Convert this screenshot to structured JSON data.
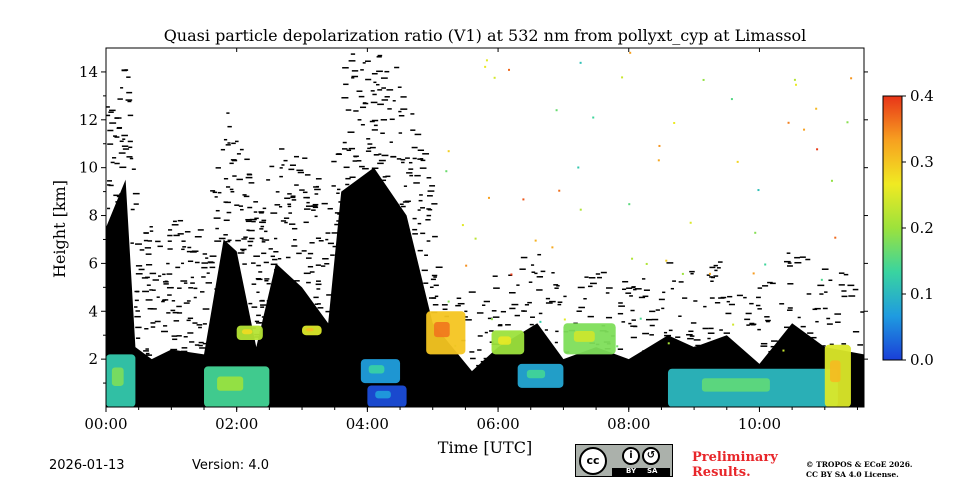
{
  "chart_data": {
    "type": "heatmap",
    "title": "Quasi particle depolarization ratio (V1) at 532 nm from pollyxt_cyp at Limassol",
    "xlabel": "Time [UTC]",
    "ylabel": "Height [km]",
    "xlim_hours": [
      0,
      11.6
    ],
    "ylim_km": [
      0,
      15
    ],
    "x_ticks": [
      {
        "value": 0,
        "label": "00:00"
      },
      {
        "value": 2,
        "label": "02:00"
      },
      {
        "value": 4,
        "label": "04:00"
      },
      {
        "value": 6,
        "label": "06:00"
      },
      {
        "value": 8,
        "label": "08:00"
      },
      {
        "value": 10,
        "label": "10:00"
      }
    ],
    "y_ticks": [
      {
        "value": 2,
        "label": "2"
      },
      {
        "value": 4,
        "label": "4"
      },
      {
        "value": 6,
        "label": "6"
      },
      {
        "value": 8,
        "label": "8"
      },
      {
        "value": 10,
        "label": "10"
      },
      {
        "value": 12,
        "label": "12"
      },
      {
        "value": 14,
        "label": "14"
      }
    ],
    "colorbar": {
      "vmin": 0.0,
      "vmax": 0.4,
      "ticks": [
        {
          "value": 0.0,
          "label": "0.0"
        },
        {
          "value": 0.1,
          "label": "0.1"
        },
        {
          "value": 0.2,
          "label": "0.2"
        },
        {
          "value": 0.3,
          "label": "0.3"
        },
        {
          "value": 0.4,
          "label": "0.4"
        }
      ],
      "colors": [
        "#1a3fd8",
        "#1f9be0",
        "#39d4a0",
        "#9ce23c",
        "#f0ea22",
        "#f7a020",
        "#e83418"
      ]
    },
    "black_masked_region": {
      "description_value": "missing/unreliable data shown black",
      "profile": [
        {
          "t": 0.0,
          "top_km": 7.5
        },
        {
          "t": 0.3,
          "top_km": 9.5
        },
        {
          "t": 0.45,
          "top_km": 2.5
        },
        {
          "t": 0.7,
          "top_km": 2.0
        },
        {
          "t": 1.0,
          "top_km": 2.4
        },
        {
          "t": 1.5,
          "top_km": 2.2
        },
        {
          "t": 1.8,
          "top_km": 7.0
        },
        {
          "t": 2.0,
          "top_km": 6.5
        },
        {
          "t": 2.3,
          "top_km": 2.5
        },
        {
          "t": 2.6,
          "top_km": 6.0
        },
        {
          "t": 3.0,
          "top_km": 5.0
        },
        {
          "t": 3.4,
          "top_km": 3.5
        },
        {
          "t": 3.6,
          "top_km": 9.0
        },
        {
          "t": 4.1,
          "top_km": 10.0
        },
        {
          "t": 4.6,
          "top_km": 8.0
        },
        {
          "t": 5.0,
          "top_km": 3.5
        },
        {
          "t": 5.6,
          "top_km": 1.5
        },
        {
          "t": 6.0,
          "top_km": 2.5
        },
        {
          "t": 6.6,
          "top_km": 3.5
        },
        {
          "t": 7.0,
          "top_km": 2.0
        },
        {
          "t": 7.5,
          "top_km": 2.5
        },
        {
          "t": 8.0,
          "top_km": 2.0
        },
        {
          "t": 8.6,
          "top_km": 3.0
        },
        {
          "t": 9.0,
          "top_km": 2.5
        },
        {
          "t": 9.5,
          "top_km": 3.0
        },
        {
          "t": 10.0,
          "top_km": 1.8
        },
        {
          "t": 10.5,
          "top_km": 3.5
        },
        {
          "t": 11.0,
          "top_km": 2.5
        },
        {
          "t": 11.6,
          "top_km": 2.2
        }
      ]
    },
    "aerosol_patches": [
      {
        "t0": 0.0,
        "t1": 0.45,
        "h0": 0.0,
        "h1": 2.2,
        "value": 0.12
      },
      {
        "t0": 1.5,
        "t1": 2.5,
        "h0": 0.0,
        "h1": 1.7,
        "value": 0.14
      },
      {
        "t0": 2.0,
        "t1": 2.4,
        "h0": 2.8,
        "h1": 3.4,
        "value": 0.22
      },
      {
        "t0": 3.0,
        "t1": 3.3,
        "h0": 3.0,
        "h1": 3.4,
        "value": 0.25
      },
      {
        "t0": 4.0,
        "t1": 4.6,
        "h0": 0.0,
        "h1": 0.9,
        "value": 0.01
      },
      {
        "t0": 3.9,
        "t1": 4.5,
        "h0": 1.0,
        "h1": 2.0,
        "value": 0.07
      },
      {
        "t0": 4.9,
        "t1": 5.5,
        "h0": 2.2,
        "h1": 4.0,
        "value": 0.3
      },
      {
        "t0": 5.9,
        "t1": 6.4,
        "h0": 2.2,
        "h1": 3.2,
        "value": 0.2
      },
      {
        "t0": 6.3,
        "t1": 7.0,
        "h0": 0.8,
        "h1": 1.8,
        "value": 0.08
      },
      {
        "t0": 7.0,
        "t1": 7.8,
        "h0": 2.2,
        "h1": 3.5,
        "value": 0.18
      },
      {
        "t0": 8.6,
        "t1": 11.2,
        "h0": 0.0,
        "h1": 1.6,
        "value": 0.1
      },
      {
        "t0": 11.0,
        "t1": 11.4,
        "h0": 0.0,
        "h1": 2.6,
        "value": 0.25
      }
    ]
  },
  "footer": {
    "date": "2026-01-13",
    "version": "Version: 4.0",
    "license_badge": {
      "cc": "cc",
      "by": "BY",
      "sa": "SA"
    },
    "preliminary_line1": "Preliminary",
    "preliminary_line2": "Results.",
    "copyright_line1": "© TROPOS & ECoE 2026.",
    "copyright_line2": "CC BY SA 4.0 License."
  }
}
